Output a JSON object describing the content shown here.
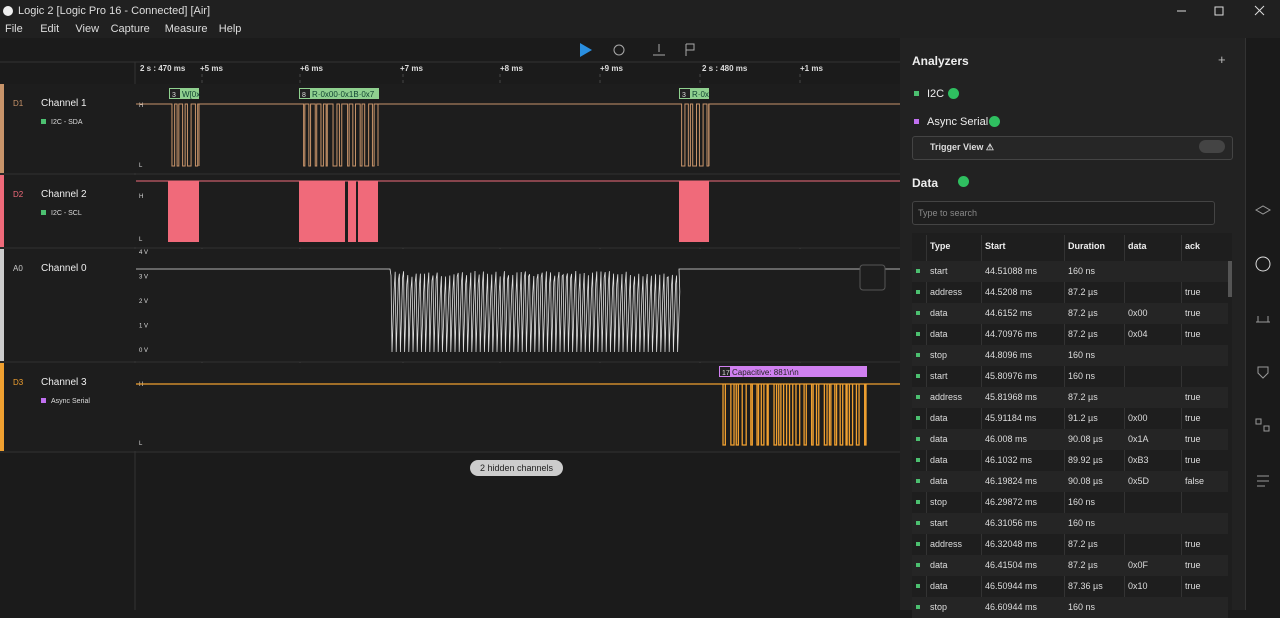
{
  "window": {
    "title": "Logic 2 [Logic Pro 16 - Connected] [Air]"
  },
  "menu": [
    "File",
    "Edit",
    "View",
    "Capture",
    "Measure",
    "Help"
  ],
  "timeline": [
    "2 s : 470 ms",
    "+5 ms",
    "+6 ms",
    "+7 ms",
    "+8 ms",
    "+9 ms",
    "2 s : 480 ms",
    "+1 ms"
  ],
  "channels": [
    {
      "id": "D1",
      "name": "Channel 1",
      "analyzer": "I2C - SDA",
      "high": "H",
      "low": "L",
      "frames": [
        {
          "badge": "3",
          "text": "W[0x"
        },
        {
          "badge": "8",
          "text": "R·0x00·0x1B·0x7"
        },
        {
          "badge": "3",
          "text": "R·0x"
        }
      ]
    },
    {
      "id": "D2",
      "name": "Channel 2",
      "analyzer": "I2C - SCL",
      "high": "H",
      "low": "L"
    },
    {
      "id": "A0",
      "name": "Channel 0",
      "levels": [
        "4 V",
        "3 V",
        "2 V",
        "1 V",
        "0 V"
      ]
    },
    {
      "id": "D3",
      "name": "Channel 3",
      "analyzer": "Async Serial",
      "high": "H",
      "low": "L",
      "frames": [
        {
          "badge": "17",
          "text": "Capacitive: 881\\r\\n"
        }
      ]
    }
  ],
  "hidden_channels": "2 hidden channels",
  "analyzers": {
    "title": "Analyzers",
    "add": "+",
    "items": [
      "I2C",
      "Async Serial"
    ],
    "trigger_view": "Trigger View ⚠"
  },
  "data": {
    "title": "Data",
    "search_placeholder": "Type to search",
    "columns": [
      "Type",
      "Start",
      "Duration",
      "data",
      "ack"
    ],
    "rows": [
      [
        "start",
        "44.51088 ms",
        "160 ns",
        null,
        null
      ],
      [
        "address",
        "44.5208 ms",
        "87.2 µs",
        null,
        "true"
      ],
      [
        "data",
        "44.6152 ms",
        "87.2 µs",
        "0x00",
        "true"
      ],
      [
        "data",
        "44.70976 ms",
        "87.2 µs",
        "0x04",
        "true"
      ],
      [
        "stop",
        "44.8096 ms",
        "160 ns",
        null,
        null
      ],
      [
        "start",
        "45.80976 ms",
        "160 ns",
        null,
        null
      ],
      [
        "address",
        "45.81968 ms",
        "87.2 µs",
        null,
        "true"
      ],
      [
        "data",
        "45.91184 ms",
        "91.2 µs",
        "0x00",
        "true"
      ],
      [
        "data",
        "46.008 ms",
        "90.08 µs",
        "0x1A",
        "true"
      ],
      [
        "data",
        "46.1032 ms",
        "89.92 µs",
        "0xB3",
        "true"
      ],
      [
        "data",
        "46.19824 ms",
        "90.08 µs",
        "0x5D",
        "false"
      ],
      [
        "stop",
        "46.29872 ms",
        "160 ns",
        null,
        null
      ],
      [
        "start",
        "46.31056 ms",
        "160 ns",
        null,
        null
      ],
      [
        "address",
        "46.32048 ms",
        "87.2 µs",
        null,
        "true"
      ],
      [
        "data",
        "46.41504 ms",
        "87.2 µs",
        "0x0F",
        "true"
      ],
      [
        "data",
        "46.50944 ms",
        "87.36 µs",
        "0x10",
        "true"
      ],
      [
        "stop",
        "46.60944 ms",
        "160 ns",
        null,
        null
      ]
    ]
  }
}
